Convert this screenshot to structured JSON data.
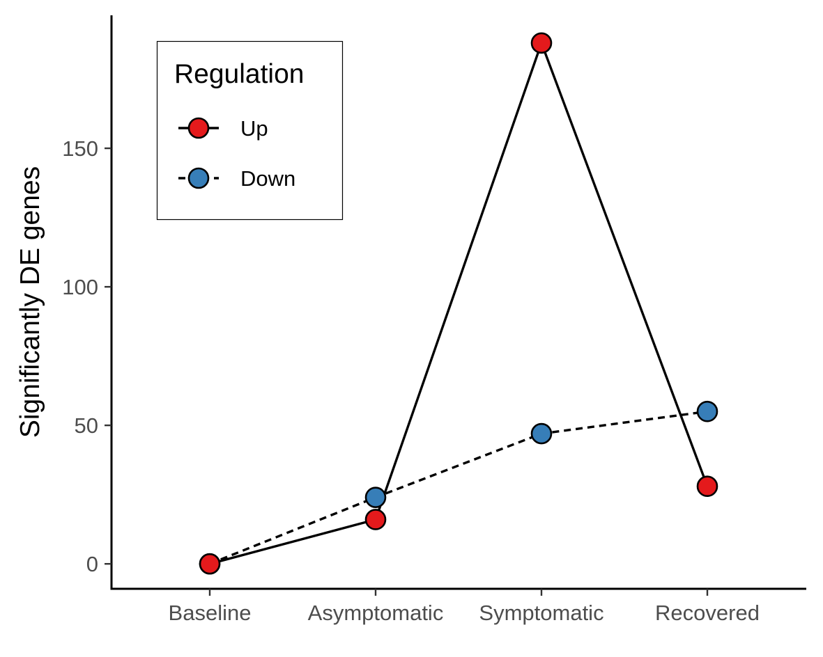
{
  "chart_data": {
    "type": "line",
    "title": "",
    "xlabel": "",
    "ylabel": "Significantly DE genes",
    "categories": [
      "Baseline",
      "Asymptomatic",
      "Symptomatic",
      "Recovered"
    ],
    "ylim": [
      -9,
      198
    ],
    "yticks": [
      0,
      50,
      100,
      150
    ],
    "grid": false,
    "legend": {
      "title": "Regulation",
      "position": "top-left"
    },
    "series": [
      {
        "name": "Up",
        "values": [
          0,
          16,
          188,
          28
        ],
        "color": "#e41a1c",
        "line_style": "solid"
      },
      {
        "name": "Down",
        "values": [
          0,
          24,
          47,
          55
        ],
        "color": "#377eb8",
        "line_style": "dashed"
      }
    ]
  }
}
